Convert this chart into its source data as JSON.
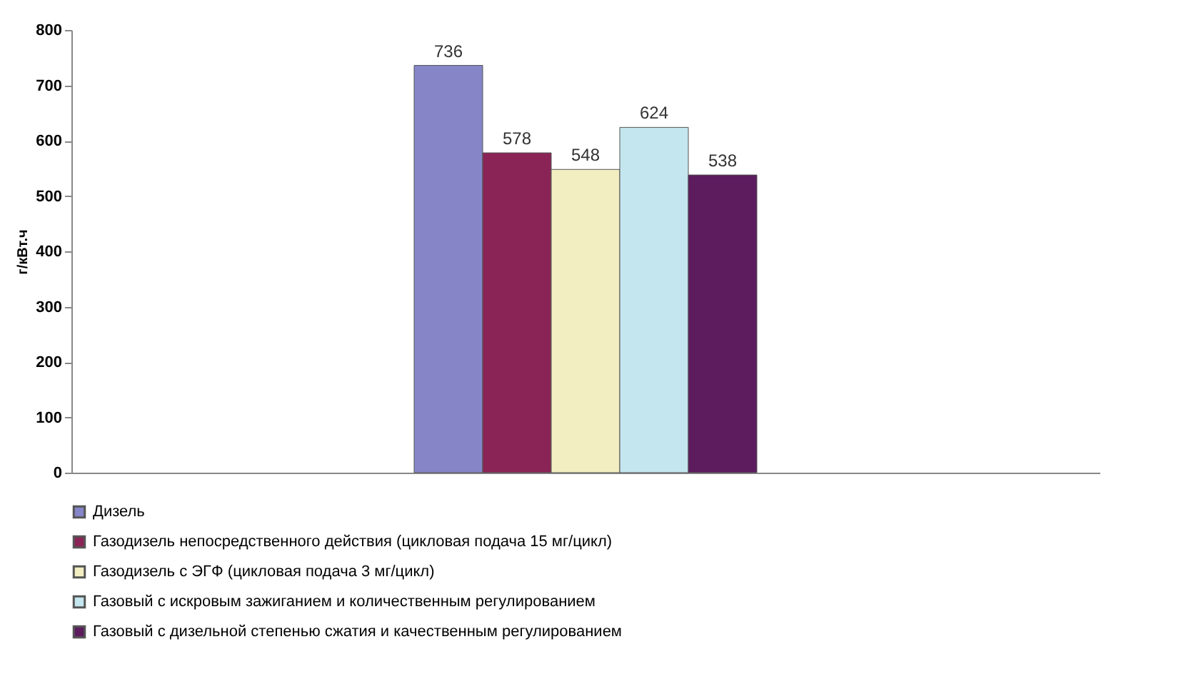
{
  "chart_data": {
    "type": "bar",
    "ylabel": "г/кВт.ч",
    "categories": [
      null
    ],
    "ylim": [
      0,
      800
    ],
    "yticks": [
      0,
      100,
      200,
      300,
      400,
      500,
      600,
      700,
      800
    ],
    "grid": false,
    "legend": "bottom",
    "data_labels": true,
    "series": [
      {
        "name": "Дизель",
        "color": "#8585c8",
        "values": [
          736
        ]
      },
      {
        "name": "Газодизель непосредственного действия (цикловая подача 15 мг/цикл)",
        "color": "#8b2456",
        "values": [
          578
        ]
      },
      {
        "name": "Газодизель с ЭГФ (цикловая подача 3 мг/цикл)",
        "color": "#f2eec2",
        "values": [
          548
        ]
      },
      {
        "name": "Газовый с искровым зажиганием и количественным регулированием",
        "color": "#c4e6ee",
        "values": [
          624
        ]
      },
      {
        "name": "Газовый с дизельной степенью сжатия и качественным регулированием",
        "color": "#5c1c5e",
        "values": [
          538
        ]
      }
    ]
  }
}
